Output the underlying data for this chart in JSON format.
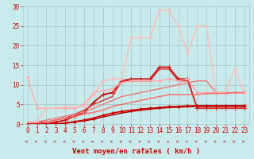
{
  "x": [
    0,
    1,
    2,
    3,
    4,
    5,
    6,
    7,
    8,
    9,
    10,
    11,
    12,
    13,
    14,
    15,
    16,
    17,
    18,
    19,
    20,
    21,
    22,
    23
  ],
  "lines": [
    {
      "y": [
        0,
        0,
        0,
        0,
        0.2,
        0.5,
        0.8,
        1.2,
        1.8,
        2.3,
        2.8,
        3.2,
        3.5,
        3.8,
        4.0,
        4.2,
        4.3,
        4.4,
        4.5,
        4.5,
        4.5,
        4.5,
        4.5,
        4.5
      ],
      "color": "#aa0000",
      "lw": 1.0,
      "marker": null,
      "ms": 0
    },
    {
      "y": [
        0,
        0,
        0,
        0.5,
        1,
        2,
        3,
        5.5,
        7.5,
        8,
        11,
        11.5,
        11.5,
        11.5,
        14.5,
        14.5,
        11.5,
        11.5,
        4,
        4,
        4,
        4,
        4,
        4
      ],
      "color": "#cc0000",
      "lw": 1.2,
      "marker": "+",
      "ms": 4
    },
    {
      "y": [
        0.5,
        0.5,
        0.5,
        1,
        1.5,
        2.5,
        3.5,
        5,
        6,
        7,
        11,
        11,
        11,
        11,
        14,
        14,
        11,
        11,
        4,
        4,
        4,
        4,
        4,
        4
      ],
      "color": "#dd3333",
      "lw": 1.0,
      "marker": null,
      "ms": 0
    },
    {
      "y": [
        12,
        4,
        4,
        4,
        4,
        4,
        5,
        8,
        8.5,
        9,
        10.5,
        11,
        11,
        11,
        11,
        11.5,
        11,
        11.5,
        8,
        8,
        8,
        8,
        8,
        8
      ],
      "color": "#ffaaaa",
      "lw": 1.0,
      "marker": "o",
      "ms": 2
    },
    {
      "y": [
        0,
        0.5,
        1,
        1.5,
        2,
        2.5,
        3,
        4,
        5,
        6,
        7,
        7.5,
        8,
        8.5,
        9,
        9.5,
        10,
        10.5,
        11,
        11,
        8,
        8,
        8,
        8
      ],
      "color": "#ee7777",
      "lw": 1.0,
      "marker": null,
      "ms": 0
    },
    {
      "y": [
        0.5,
        0.5,
        4,
        4,
        4.5,
        4.5,
        4.5,
        7.5,
        11,
        11.5,
        11.5,
        22,
        22,
        22,
        29,
        29,
        25,
        18,
        25,
        25,
        8,
        8,
        14,
        8
      ],
      "color": "#ffbbbb",
      "lw": 1.0,
      "marker": "o",
      "ms": 2
    },
    {
      "y": [
        0,
        0,
        0.5,
        1,
        1.5,
        2,
        2.5,
        3,
        3.5,
        4.5,
        5,
        5.5,
        6,
        6.5,
        7,
        7.5,
        7.5,
        7.5,
        7.5,
        7.8,
        7.8,
        7.8,
        8,
        8
      ],
      "color": "#ff6666",
      "lw": 1.0,
      "marker": null,
      "ms": 0
    },
    {
      "y": [
        0,
        0,
        0,
        0,
        0.3,
        0.6,
        1,
        1.5,
        2.2,
        2.8,
        3.2,
        3.5,
        3.8,
        4.0,
        4.2,
        4.4,
        4.5,
        4.6,
        4.7,
        4.7,
        4.7,
        4.7,
        4.7,
        4.7
      ],
      "color": "#cc0000",
      "lw": 1.2,
      "marker": "D",
      "ms": 2
    }
  ],
  "xlabel": "Vent moyen/en rafales ( km/h )",
  "xlim": [
    -0.5,
    23.5
  ],
  "ylim": [
    0,
    30
  ],
  "xticks": [
    0,
    1,
    2,
    3,
    4,
    5,
    6,
    7,
    8,
    9,
    10,
    11,
    12,
    13,
    14,
    15,
    16,
    17,
    18,
    19,
    20,
    21,
    22,
    23
  ],
  "yticks": [
    0,
    5,
    10,
    15,
    20,
    25,
    30
  ],
  "bg_color": "#c8eaea",
  "grid_color": "#aacccc",
  "text_color": "#cc0000",
  "xlabel_fontsize": 6.5,
  "tick_fontsize": 5.5,
  "arrow_color": "#cc3333"
}
